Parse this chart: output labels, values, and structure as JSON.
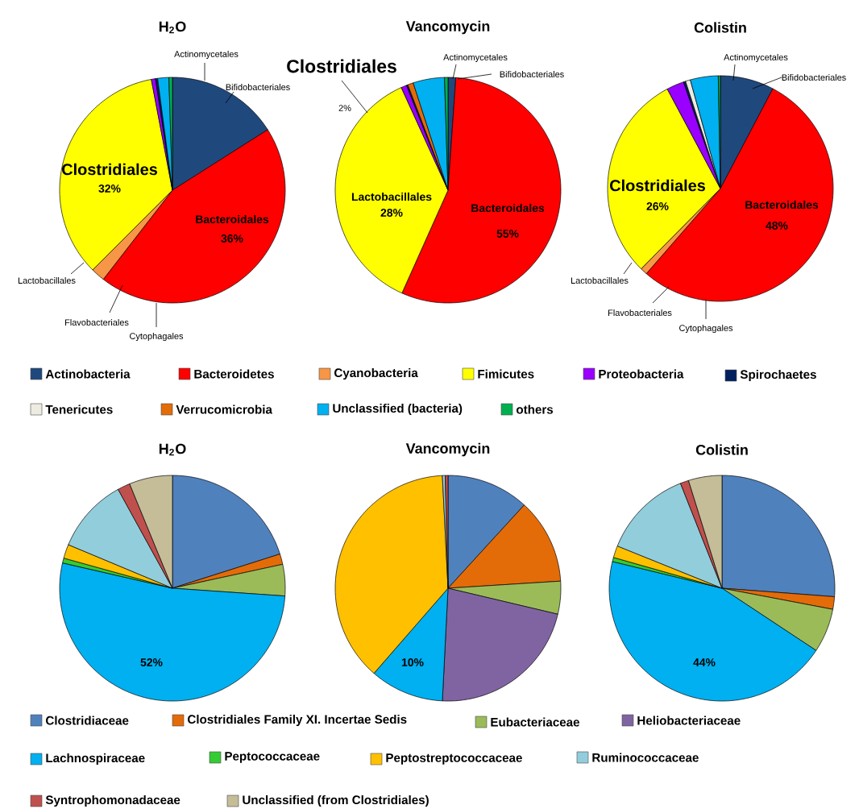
{
  "chart_data": [
    {
      "type": "pie",
      "title": "H$_{2}$O",
      "legend": "bottom",
      "categories": [
        "Actinobacteria",
        "Bacteroidetes",
        "Cyanobacteria",
        "Fimicutes",
        "Proteobacteria",
        "Spirochaetes",
        "Tenericutes",
        "Verrucomicrobia",
        "Unclassified (bacteria)",
        "others"
      ],
      "values": [
        16,
        44.5,
        2,
        34.5,
        0.6,
        0.3,
        0,
        0,
        1.6,
        0.5
      ],
      "colors": [
        "#1f497d",
        "#ff0000",
        "#f79646",
        "#ffff00",
        "#9900ff",
        "#002060",
        "#eeece1",
        "#e36c09",
        "#00b0f0",
        "#00b050"
      ],
      "annotations": [
        "Actinomycetales",
        "Bifidobacteriales",
        "Clostridiales",
        "32%",
        "Bacteroidales",
        "36%",
        "Lactobacillales",
        "Flavobacteriales",
        "Cytophagales"
      ]
    },
    {
      "type": "pie",
      "title": "Vancomycin",
      "legend": false,
      "categories": [
        null,
        null,
        null,
        null,
        null,
        null,
        null,
        null,
        null,
        null
      ],
      "values": [
        1.1,
        55.6,
        0,
        36.5,
        0.8,
        0.2,
        0,
        0.8,
        4.5,
        0.5
      ],
      "colors": [
        "#1f497d",
        "#ff0000",
        "#f79646",
        "#ffff00",
        "#9900ff",
        "#002060",
        "#eeece1",
        "#e36c09",
        "#00b0f0",
        "#00b050"
      ],
      "annotations": [
        "Actinomycetales",
        "Bifidobacteriales",
        "Clostridiales",
        "2%",
        "Lactobacillales",
        "28%",
        "Bacteroidales",
        "55%"
      ]
    },
    {
      "type": "pie",
      "title": "Colistin",
      "legend": false,
      "categories": [
        null,
        null,
        null,
        null,
        null,
        null,
        null,
        null,
        null,
        null
      ],
      "values": [
        7.7,
        53.7,
        1,
        29.8,
        2.5,
        0.3,
        0.7,
        0,
        4,
        0.3
      ],
      "colors": [
        "#1f497d",
        "#ff0000",
        "#f79646",
        "#ffff00",
        "#9900ff",
        "#002060",
        "#eeece1",
        "#e36c09",
        "#00b0f0",
        "#00b050"
      ],
      "annotations": [
        "Actinomycetales",
        "Bifidobacteriales",
        "Clostridiales",
        "26%",
        "Bacteroidales",
        "48%",
        "Lactobacillales",
        "Flavobacteriales",
        "Cytophagales"
      ]
    },
    {
      "type": "pie",
      "title": "H$_{2}$O",
      "legend": "bottom",
      "categories": [
        "Clostridiaceae",
        "Clostridiales Family XI. Incertae Sedis",
        "Eubacteriaceae",
        "Heliobacteriaceae",
        "Lachnospiraceae",
        "Peptococcaceae",
        "Peptostreptococcaceae",
        "Ruminococcaceae",
        "Syntrophomonadaceae",
        "Unclassified (from Clostridiales)"
      ],
      "values": [
        20.1,
        1.5,
        4.5,
        0,
        52.5,
        0.7,
        2.0,
        10.7,
        1.8,
        6.2
      ],
      "colors": [
        "#4f81bd",
        "#e36c09",
        "#9bbb59",
        "#8064a2",
        "#00b0f0",
        "#33cc33",
        "#ffc000",
        "#92cddc",
        "#c0504d",
        "#c4bd97"
      ],
      "annotations": [
        "52%"
      ]
    },
    {
      "type": "pie",
      "title": "Vancomycin",
      "legend": false,
      "categories": [
        null,
        null,
        null,
        null,
        null,
        null,
        null,
        null,
        null,
        null
      ],
      "values": [
        11.8,
        12.2,
        4.7,
        22.1,
        10.6,
        0,
        37.8,
        0.4,
        0.4,
        0
      ],
      "colors": [
        "#4f81bd",
        "#e36c09",
        "#9bbb59",
        "#8064a2",
        "#00b0f0",
        "#33cc33",
        "#ffc000",
        "#92cddc",
        "#c0504d",
        "#c4bd97"
      ],
      "annotations": [
        "10%"
      ]
    },
    {
      "type": "pie",
      "title": "Colistin",
      "legend": false,
      "categories": [
        null,
        null,
        null,
        null,
        null,
        null,
        null,
        null,
        null,
        null
      ],
      "values": [
        26.2,
        1.8,
        6.3,
        0,
        44.5,
        0.6,
        1.7,
        12.9,
        1.2,
        4.8
      ],
      "colors": [
        "#4f81bd",
        "#e36c09",
        "#9bbb59",
        "#8064a2",
        "#00b0f0",
        "#33cc33",
        "#ffc000",
        "#92cddc",
        "#c0504d",
        "#c4bd97"
      ],
      "annotations": [
        "44%"
      ]
    }
  ]
}
